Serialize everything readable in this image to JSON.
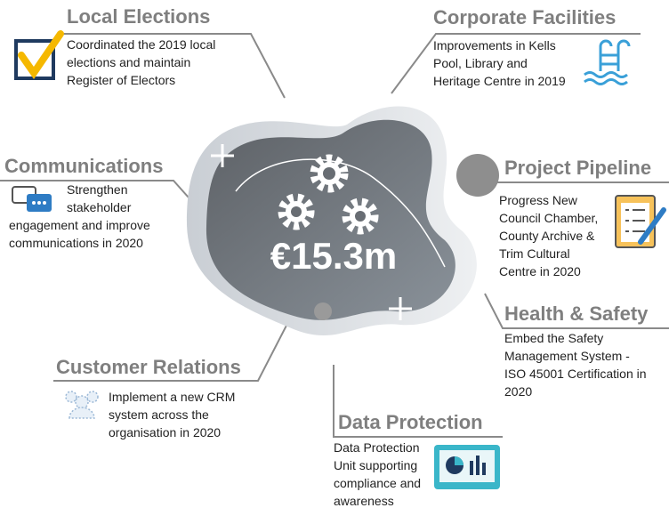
{
  "center": {
    "amount": "€15.3m"
  },
  "sections": [
    {
      "title": "Local Elections",
      "lines": [
        "Coordinated the 2019 local",
        "elections and maintain",
        "Register of Electors"
      ]
    },
    {
      "title": "Corporate Facilities",
      "lines": [
        "Improvements in Kells",
        "Pool, Library and",
        "Heritage Centre in 2019"
      ]
    },
    {
      "title": "Communications",
      "lines": [
        "Strengthen",
        "stakeholder",
        "engagement and improve",
        "communications in 2020"
      ]
    },
    {
      "title": "Project Pipeline",
      "lines": [
        "Progress New",
        "Council Chamber,",
        "County Archive &",
        "Trim Cultural",
        "Centre in 2020"
      ]
    },
    {
      "title": "Health & Safety",
      "lines": [
        "Embed the Safety",
        "Management System -",
        "ISO 45001 Certification in",
        "2020"
      ]
    },
    {
      "title": "Customer Relations",
      "lines": [
        "Implement a new CRM",
        "system across the",
        "organisation in 2020"
      ]
    },
    {
      "title": "Data Protection",
      "lines": [
        "Data Protection",
        "Unit supporting",
        "compliance and",
        "awareness"
      ]
    }
  ]
}
